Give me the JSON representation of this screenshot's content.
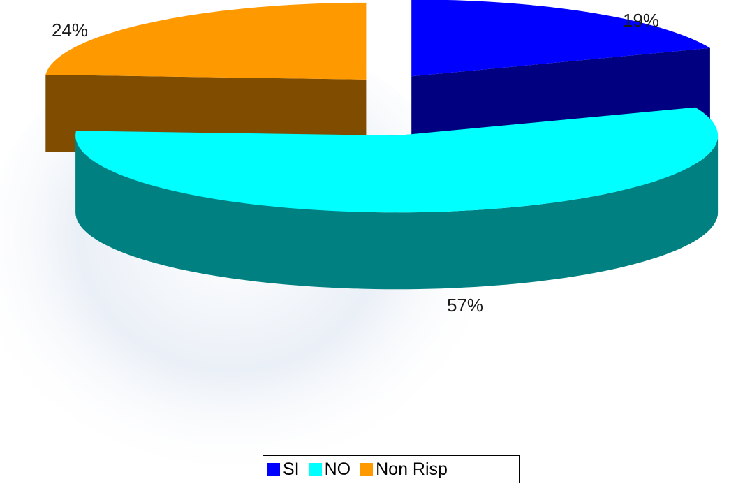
{
  "chart_data": {
    "type": "pie",
    "title": "",
    "categories": [
      "SI",
      "NO",
      "Non Risp"
    ],
    "values": [
      19,
      57,
      24
    ],
    "labels": [
      "19%",
      "57%",
      "24%"
    ],
    "colors": {
      "SI": {
        "top": "#0000ff",
        "side": "#000080"
      },
      "NO": {
        "top": "#00ffff",
        "side": "#008080"
      },
      "Non Risp": {
        "top": "#ff9900",
        "side": "#804c00"
      }
    },
    "style": "3d-exploded",
    "legend_position": "bottom"
  },
  "legend": {
    "items": [
      {
        "label": "SI",
        "color": "#0000ff"
      },
      {
        "label": "NO",
        "color": "#00ffff"
      },
      {
        "label": "Non Risp",
        "color": "#ff9900"
      }
    ]
  }
}
